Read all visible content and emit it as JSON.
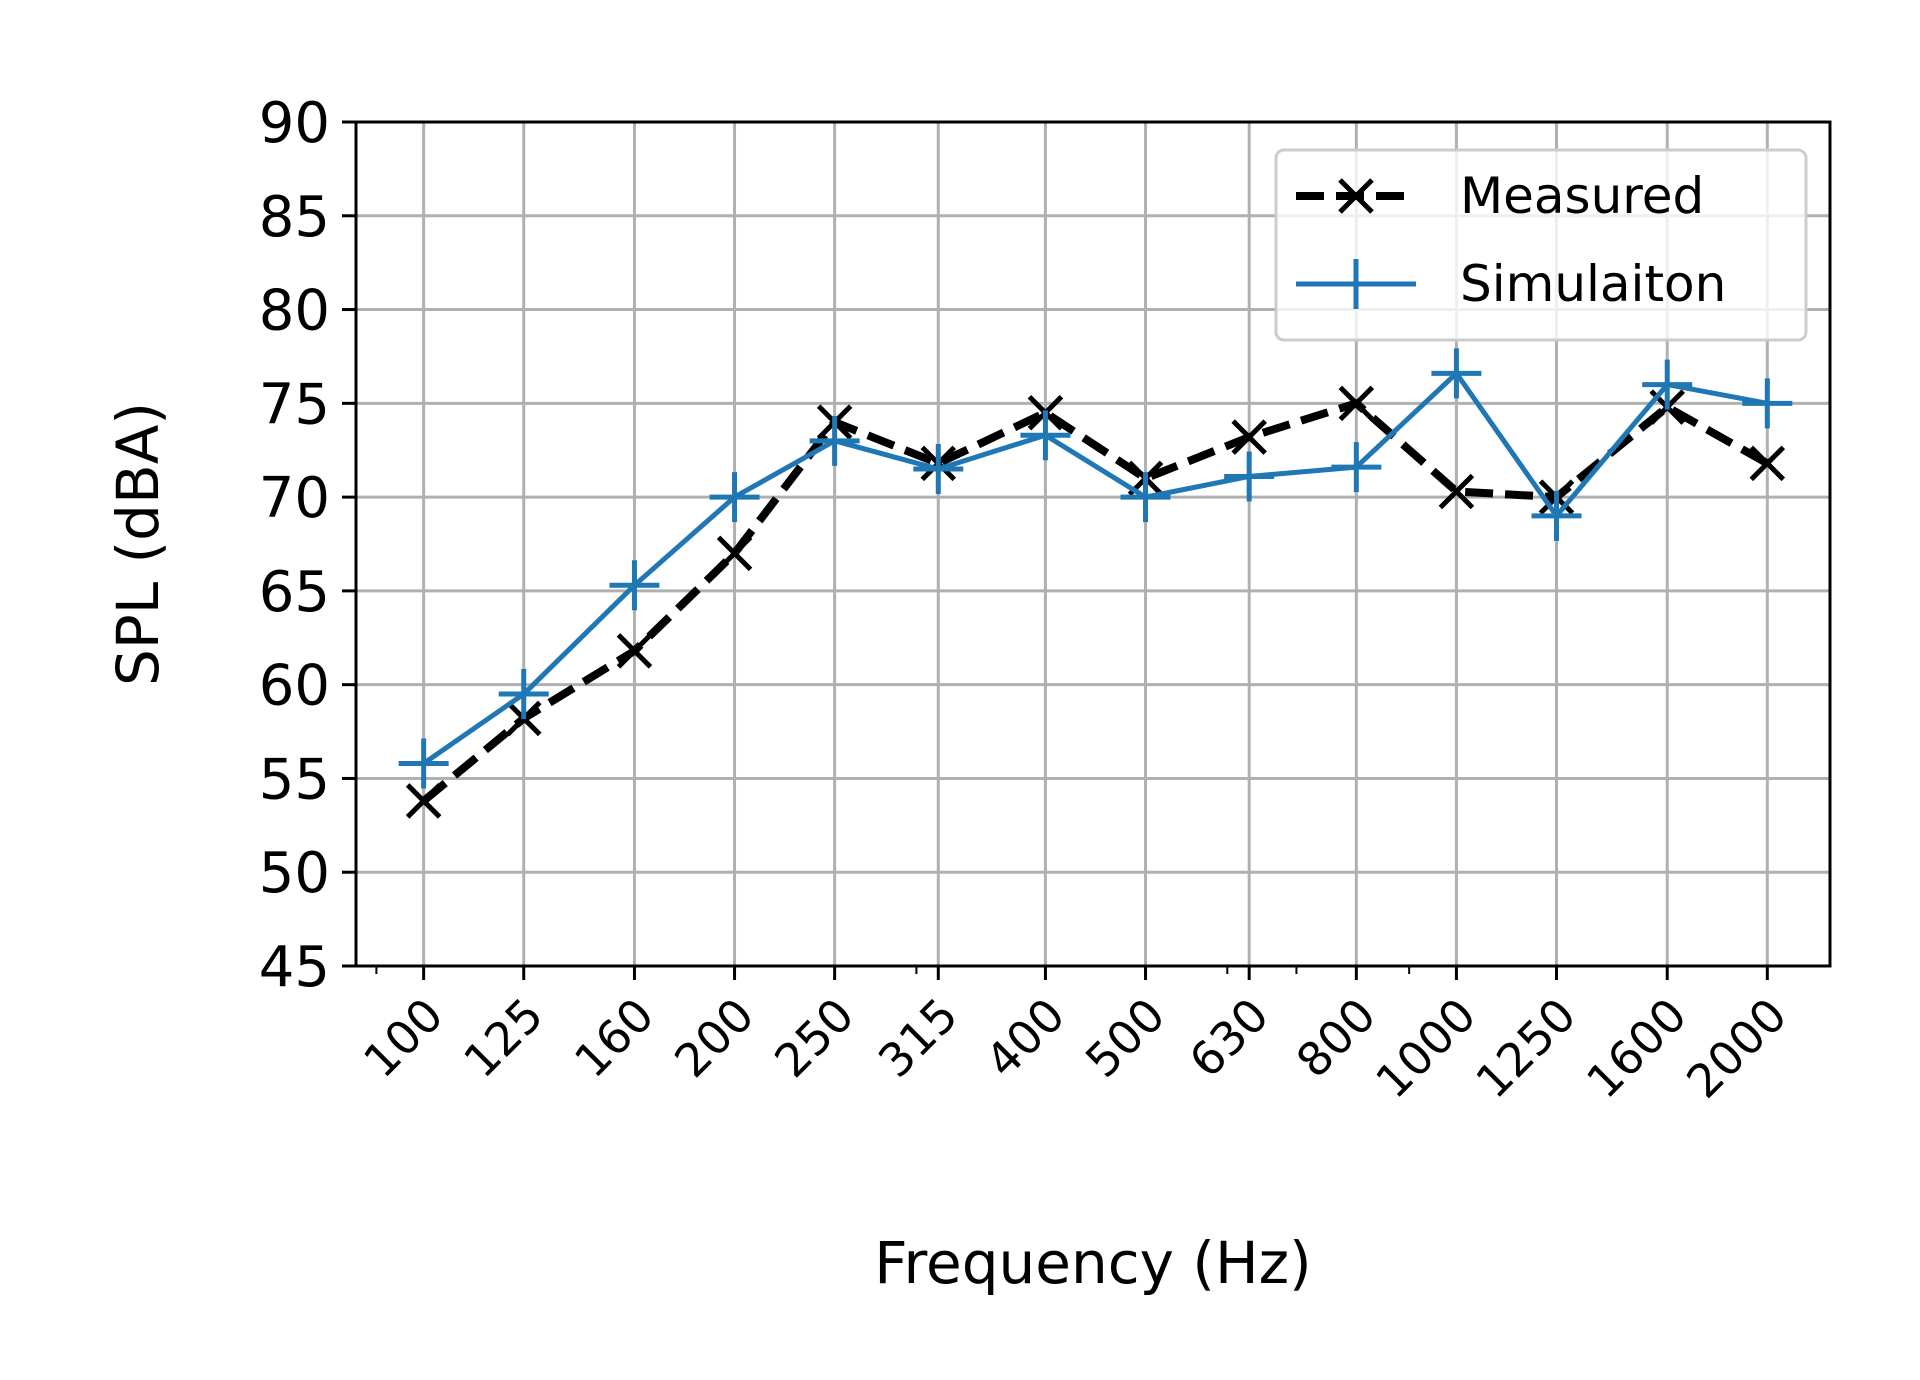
{
  "chart_data": {
    "type": "line",
    "title": "",
    "xlabel": "Frequency (Hz)",
    "ylabel": "SPL (dBA)",
    "ylim": [
      45,
      90
    ],
    "yticks": [
      "45",
      "50",
      "55",
      "60",
      "65",
      "70",
      "75",
      "80",
      "85",
      "90"
    ],
    "x_scale": "log",
    "grid": true,
    "legend_position": "top-right",
    "categories": [
      "100",
      "125",
      "160",
      "200",
      "250",
      "315",
      "400",
      "500",
      "630",
      "800",
      "1000",
      "1250",
      "1600",
      "2000"
    ],
    "x": [
      100,
      125,
      160,
      200,
      250,
      315,
      400,
      500,
      630,
      800,
      1000,
      1250,
      1600,
      2000
    ],
    "series": [
      {
        "name": "Measured",
        "color": "#000000",
        "marker": "x",
        "line_style": "dashed",
        "values": [
          53.8,
          58.2,
          61.8,
          67.0,
          74.0,
          71.8,
          74.5,
          71.0,
          73.2,
          75.0,
          70.3,
          70.0,
          74.8,
          71.8
        ]
      },
      {
        "name": "Simulaiton",
        "color": "#1f77b4",
        "marker": "+",
        "line_style": "solid",
        "values": [
          55.8,
          59.5,
          65.3,
          70.0,
          73.0,
          71.5,
          73.3,
          70.0,
          71.1,
          71.6,
          76.6,
          69.0,
          76.0,
          75.0
        ]
      }
    ]
  }
}
